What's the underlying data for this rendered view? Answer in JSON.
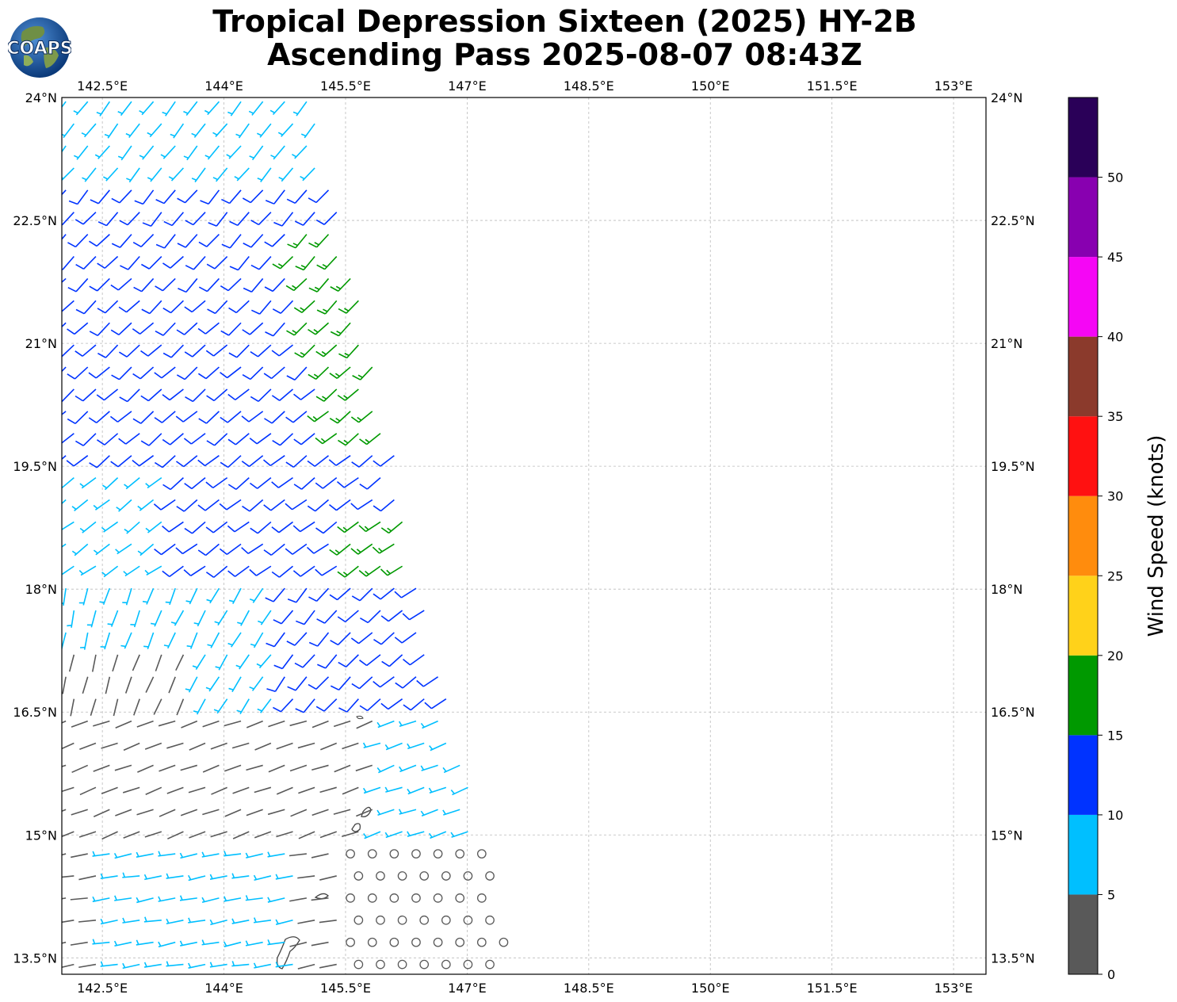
{
  "title": {
    "line1": "Tropical Depression Sixteen (2025) HY-2B",
    "line2": "Ascending Pass 2025-08-07 08:43Z"
  },
  "logo": {
    "text": "COAPS",
    "icon": "globe-logo-icon"
  },
  "map": {
    "lon_ticks": [
      "142.5°E",
      "144°E",
      "145.5°E",
      "147°E",
      "148.5°E",
      "150°E",
      "151.5°E",
      "153°E"
    ],
    "lat_ticks": [
      "24°N",
      "22.5°N",
      "21°N",
      "19.5°N",
      "18°N",
      "16.5°N",
      "15°N",
      "13.5°N"
    ],
    "lon_range": [
      142.0,
      153.4
    ],
    "lat_range": [
      13.3,
      24.0
    ],
    "grid": true
  },
  "colorbar": {
    "label": "Wind Speed (knots)",
    "ticks": [
      "0",
      "5",
      "10",
      "15",
      "20",
      "25",
      "30",
      "35",
      "40",
      "45",
      "50"
    ],
    "bins": [
      {
        "min": 0,
        "max": 5,
        "color": "#595959"
      },
      {
        "min": 5,
        "max": 10,
        "color": "#00bfff"
      },
      {
        "min": 10,
        "max": 15,
        "color": "#0033ff"
      },
      {
        "min": 15,
        "max": 20,
        "color": "#009900"
      },
      {
        "min": 20,
        "max": 25,
        "color": "#ffd21a"
      },
      {
        "min": 25,
        "max": 30,
        "color": "#ff8c0d"
      },
      {
        "min": 30,
        "max": 35,
        "color": "#ff1111"
      },
      {
        "min": 35,
        "max": 40,
        "color": "#8b3a2c"
      },
      {
        "min": 40,
        "max": 45,
        "color": "#f506f5"
      },
      {
        "min": 45,
        "max": 50,
        "color": "#8800b0"
      },
      {
        "min": 50,
        "max": 55,
        "color": "#2a0058"
      }
    ]
  }
}
